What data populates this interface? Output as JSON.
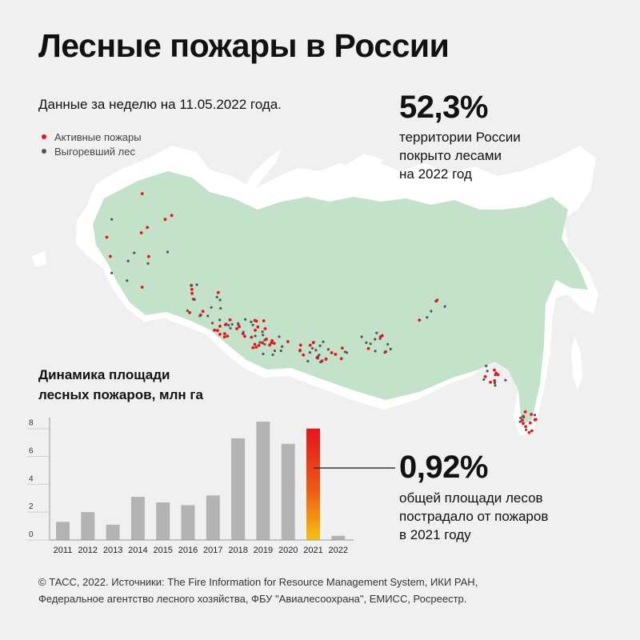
{
  "title": "Лесные пожары в России",
  "subtitle": "Данные за неделю на 11.05.2022 года.",
  "legend": {
    "active_fires": "Активные пожары",
    "burned_forest": "Выгоревший лес"
  },
  "colors": {
    "active": "#e8131b",
    "burned": "#555555",
    "forest": "#c4e2c9",
    "land": "#ffffff",
    "bar": "#b3b3b3",
    "highlight_top": "#e8131b",
    "highlight_bottom": "#f5c211"
  },
  "stat_forest": {
    "value": "52,3%",
    "lines": [
      "территории России",
      "покрыто лесами",
      "на 2022 год"
    ]
  },
  "stat_fires": {
    "value": "0,92%",
    "lines": [
      "общей площади лесов",
      "пострадало от пожаров",
      "в 2021 году"
    ]
  },
  "chart_title": [
    "Динамика площади",
    "лесных пожаров, млн га"
  ],
  "chart_data": {
    "type": "bar",
    "title": "Динамика площади лесных пожаров, млн га",
    "categories": [
      "2011",
      "2012",
      "2013",
      "2014",
      "2015",
      "2016",
      "2017",
      "2018",
      "2019",
      "2020",
      "2021",
      "2022"
    ],
    "values": [
      1.3,
      2.0,
      1.1,
      3.1,
      2.7,
      2.5,
      3.2,
      7.3,
      8.5,
      6.9,
      8.0,
      0.3
    ],
    "highlight_category": "2021",
    "ylim": [
      0,
      8.5
    ],
    "yticks": [
      "0",
      "2",
      "4",
      "6",
      "8"
    ],
    "xlabel": "",
    "ylabel": "",
    "grid": false
  },
  "footer": [
    "© ТАСС, 2022. Источники: The Fire Information for Resource Management System, ИКИ РАН,",
    "Федеральное агентство лесного хозяйства, ФБУ \"Авиалесоохрана\", ЕМИСС, Росреестр."
  ]
}
